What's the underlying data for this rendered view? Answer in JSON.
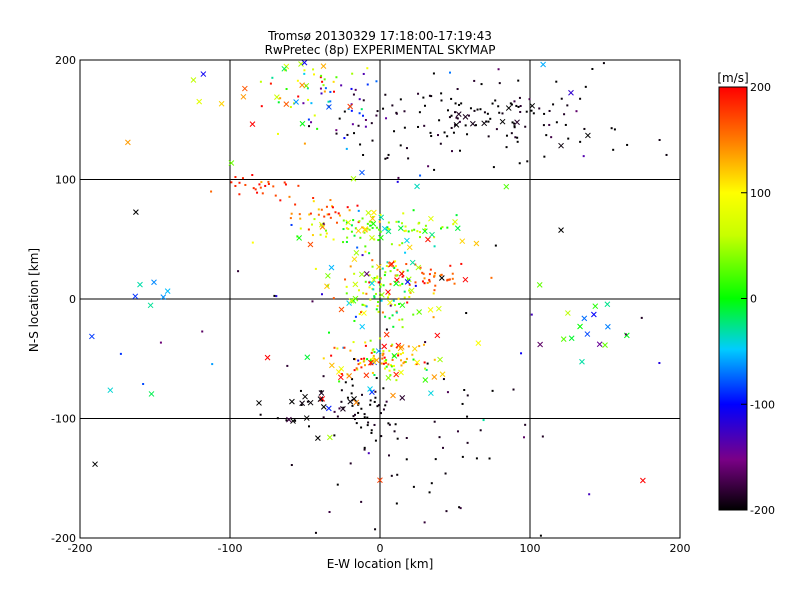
{
  "chart_data": {
    "type": "scatter",
    "title": "Tromsø 20130329 17:18:00-17:19:43",
    "subtitle": "RwPretec (8p) EXPERIMENTAL SKYMAP",
    "xlabel": "E-W location [km]",
    "ylabel": "N-S location [km]",
    "xlim": [
      -200,
      200
    ],
    "ylim": [
      -200,
      200
    ],
    "xticks": [
      "-200",
      "-100",
      "0",
      "100",
      "200"
    ],
    "yticks": [
      "-200",
      "-100",
      "0",
      "100",
      "200"
    ],
    "grid": true,
    "colorbar": {
      "label": "[m/s]",
      "min": -200,
      "max": 200,
      "ticks": [
        "200",
        "100",
        "0",
        "-100",
        "-200"
      ]
    },
    "markers": {
      "dot": "small point",
      "cross": "x"
    },
    "clusters": [
      {
        "x": 60,
        "y": 150,
        "sx": 40,
        "sy": 12,
        "n": 70,
        "v": -200,
        "vs": 10,
        "m": "dot"
      },
      {
        "x": 125,
        "y": 160,
        "sx": 45,
        "sy": 25,
        "n": 45,
        "v": -200,
        "vs": 10,
        "m": "dot"
      },
      {
        "x": 20,
        "y": 140,
        "sx": 25,
        "sy": 20,
        "n": 30,
        "v": -200,
        "vs": 10,
        "m": "dot"
      },
      {
        "x": -50,
        "y": 180,
        "sx": 20,
        "sy": 15,
        "n": 40,
        "v": 90,
        "vs": 90,
        "m": "dot"
      },
      {
        "x": -25,
        "y": 160,
        "sx": 15,
        "sy": 15,
        "n": 35,
        "v": -120,
        "vs": 60,
        "m": "dot"
      },
      {
        "x": -80,
        "y": 95,
        "sx": 15,
        "sy": 6,
        "n": 25,
        "v": 185,
        "vs": 15,
        "m": "dot"
      },
      {
        "x": -35,
        "y": 72,
        "sx": 12,
        "sy": 6,
        "n": 30,
        "v": 160,
        "vs": 30,
        "m": "dot"
      },
      {
        "x": 0,
        "y": 58,
        "sx": 25,
        "sy": 7,
        "n": 80,
        "v": 40,
        "vs": 40,
        "m": "dot"
      },
      {
        "x": 35,
        "y": 20,
        "sx": 12,
        "sy": 6,
        "n": 30,
        "v": 170,
        "vs": 25,
        "m": "dot"
      },
      {
        "x": 0,
        "y": 10,
        "sx": 15,
        "sy": 15,
        "n": 100,
        "v": 60,
        "vs": 70,
        "m": "dot"
      },
      {
        "x": 0,
        "y": -50,
        "sx": 18,
        "sy": 8,
        "n": 90,
        "v": 110,
        "vs": 80,
        "m": "dot"
      },
      {
        "x": -30,
        "y": -85,
        "sx": 20,
        "sy": 10,
        "n": 30,
        "v": -200,
        "vs": 10,
        "m": "dot"
      },
      {
        "x": 15,
        "y": -120,
        "sx": 40,
        "sy": 40,
        "n": 55,
        "v": -200,
        "vs": 10,
        "m": "dot"
      },
      {
        "x": -5,
        "y": -100,
        "sx": 6,
        "sy": 8,
        "n": 20,
        "v": -200,
        "vs": 10,
        "m": "dot"
      },
      {
        "x": 60,
        "y": 150,
        "sx": 30,
        "sy": 10,
        "n": 10,
        "v": -200,
        "vs": 10,
        "m": "cross"
      },
      {
        "x": 0,
        "y": 60,
        "sx": 30,
        "sy": 15,
        "n": 30,
        "v": 40,
        "vs": 80,
        "m": "cross"
      },
      {
        "x": 0,
        "y": 10,
        "sx": 20,
        "sy": 15,
        "n": 30,
        "v": 60,
        "vs": 100,
        "m": "cross"
      },
      {
        "x": 0,
        "y": -55,
        "sx": 25,
        "sy": 15,
        "n": 35,
        "v": 100,
        "vs": 100,
        "m": "cross"
      },
      {
        "x": -30,
        "y": -85,
        "sx": 25,
        "sy": 10,
        "n": 15,
        "v": -200,
        "vs": 10,
        "m": "cross"
      },
      {
        "x": 140,
        "y": -30,
        "sx": 15,
        "sy": 15,
        "n": 12,
        "v": -40,
        "vs": 40,
        "m": "cross"
      },
      {
        "x": -150,
        "y": 5,
        "sx": 15,
        "sy": 6,
        "n": 6,
        "v": -60,
        "vs": 20,
        "m": "cross"
      },
      {
        "x": -50,
        "y": 170,
        "sx": 25,
        "sy": 20,
        "n": 15,
        "v": 120,
        "vs": 90,
        "m": "cross"
      },
      {
        "x": 0,
        "y": 0,
        "sx": 110,
        "sy": 110,
        "n": 40,
        "v": 0,
        "vs": 130,
        "m": "cross"
      },
      {
        "x": 0,
        "y": 0,
        "sx": 120,
        "sy": 120,
        "n": 50,
        "v": -150,
        "vs": 60,
        "m": "dot"
      }
    ]
  }
}
